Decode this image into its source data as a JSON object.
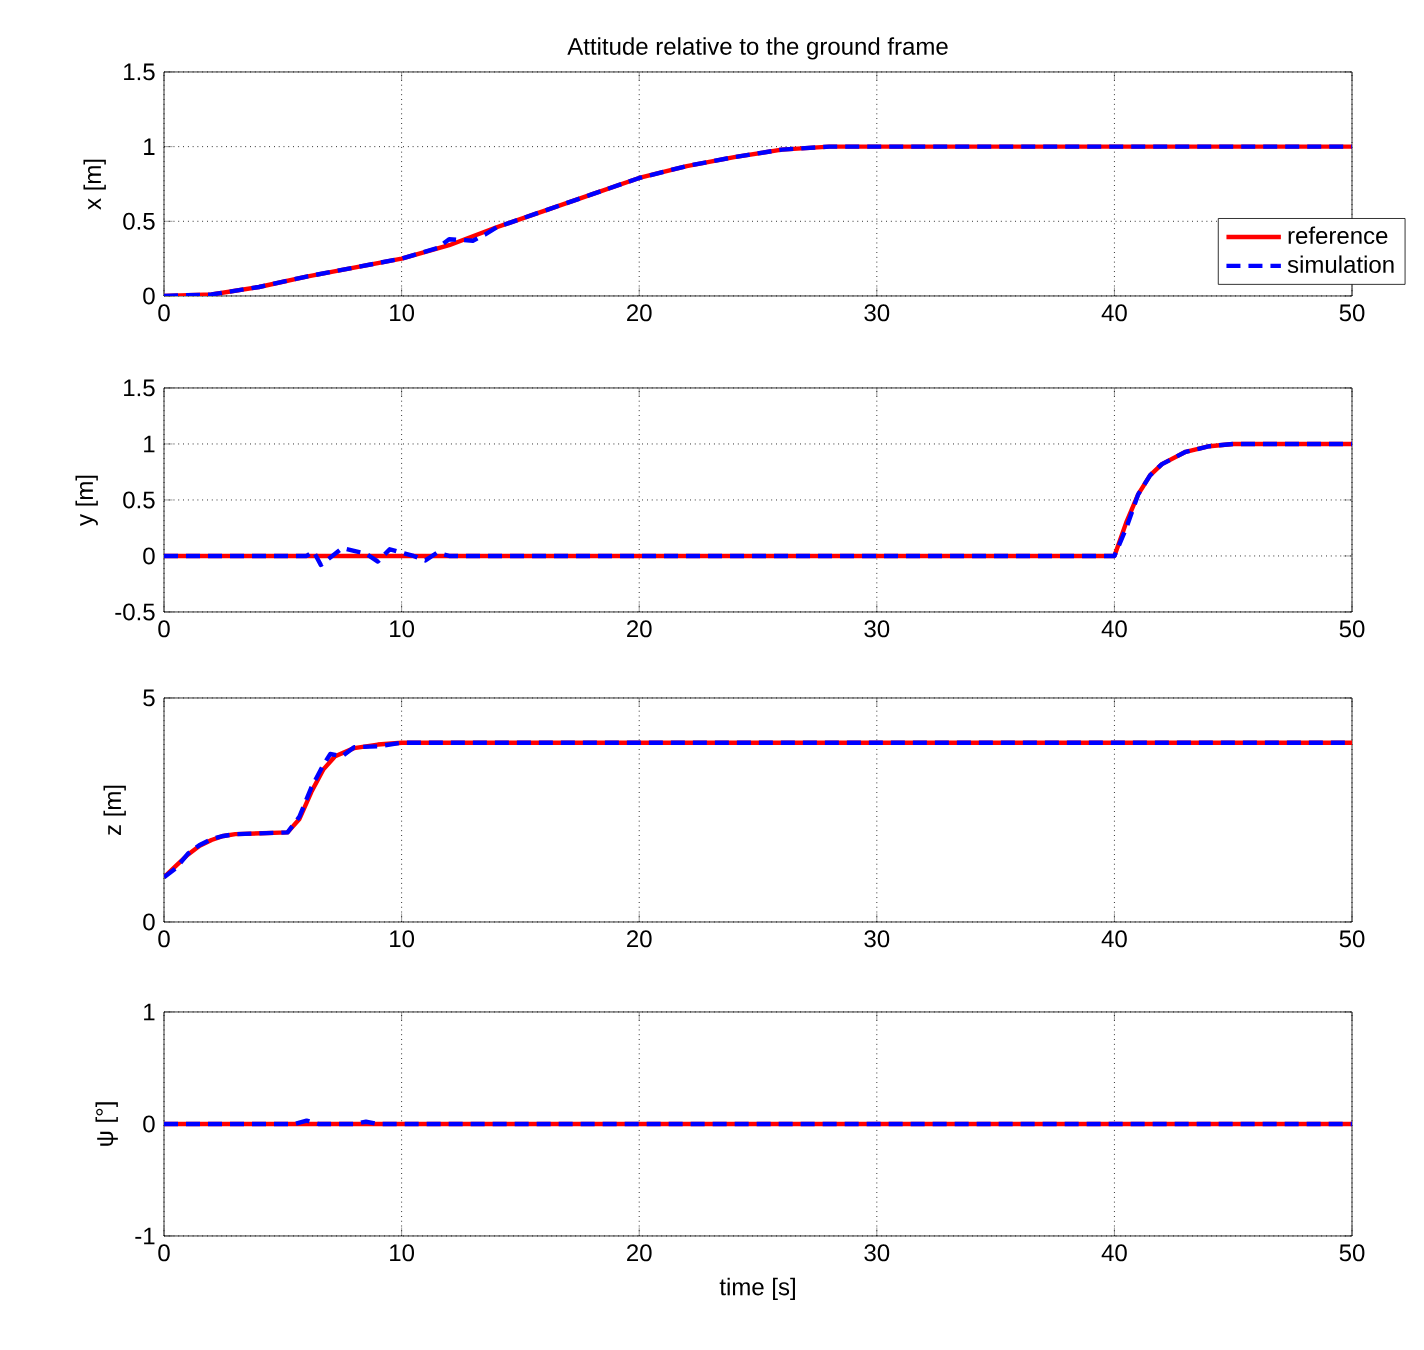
{
  "chart_data": [
    {
      "type": "line",
      "title": "Attitude relative to the ground frame",
      "ylabel": "x [m]",
      "xlim": [
        0,
        50
      ],
      "ylim": [
        0,
        1.5
      ],
      "xticks": [
        0,
        10,
        20,
        30,
        40,
        50
      ],
      "yticks": [
        0,
        0.5,
        1,
        1.5
      ],
      "grid": true,
      "legend": "bottom right",
      "series": [
        {
          "name": "reference",
          "color": "#ff0000",
          "line_style": "solid",
          "x": [
            0,
            2,
            4,
            6,
            8,
            10,
            12,
            14,
            16,
            18,
            20,
            22,
            24,
            26,
            28,
            50
          ],
          "values": [
            0,
            0.01,
            0.06,
            0.13,
            0.19,
            0.25,
            0.34,
            0.46,
            0.57,
            0.68,
            0.79,
            0.87,
            0.93,
            0.98,
            1,
            1
          ]
        },
        {
          "name": "simulation",
          "color": "#0000ff",
          "line_style": "dashed",
          "x": [
            0,
            2,
            4,
            6,
            8,
            10,
            11.5,
            12,
            13,
            13.5,
            14,
            16,
            18,
            20,
            22,
            24,
            26,
            28,
            50
          ],
          "values": [
            0,
            0.01,
            0.06,
            0.13,
            0.19,
            0.25,
            0.32,
            0.38,
            0.37,
            0.41,
            0.46,
            0.57,
            0.68,
            0.79,
            0.87,
            0.93,
            0.98,
            1,
            1
          ]
        }
      ]
    },
    {
      "type": "line",
      "ylabel": "y [m]",
      "xlim": [
        0,
        50
      ],
      "ylim": [
        -0.5,
        1.5
      ],
      "xticks": [
        0,
        10,
        20,
        30,
        40,
        50
      ],
      "yticks": [
        -0.5,
        0,
        0.5,
        1,
        1.5
      ],
      "grid": true,
      "series": [
        {
          "color": "#ff0000",
          "line_style": "solid",
          "x": [
            0,
            40,
            40.5,
            41,
            41.5,
            42,
            43,
            44,
            45,
            50
          ],
          "values": [
            0,
            0,
            0.3,
            0.55,
            0.72,
            0.82,
            0.93,
            0.98,
            1,
            1
          ]
        },
        {
          "color": "#0000ff",
          "line_style": "dashed",
          "x": [
            0,
            6,
            6.3,
            6.6,
            7.5,
            8.5,
            9,
            9.5,
            10.5,
            11,
            11.5,
            12,
            40,
            40.5,
            41,
            41.5,
            42,
            43,
            44,
            45,
            50
          ],
          "values": [
            0,
            0,
            0.04,
            -0.08,
            0.07,
            0.02,
            -0.05,
            0.06,
            0,
            -0.04,
            0.03,
            0,
            0,
            0.25,
            0.55,
            0.72,
            0.82,
            0.93,
            0.98,
            1,
            1
          ]
        }
      ]
    },
    {
      "type": "line",
      "ylabel": "z [m]",
      "xlim": [
        0,
        50
      ],
      "ylim": [
        0,
        5
      ],
      "xticks": [
        0,
        10,
        20,
        30,
        40,
        50
      ],
      "yticks": [
        0,
        5
      ],
      "grid": true,
      "series": [
        {
          "color": "#ff0000",
          "line_style": "solid",
          "x": [
            0,
            0.5,
            1,
            1.5,
            2,
            2.5,
            3,
            5.2,
            5.7,
            6.2,
            6.7,
            7.2,
            8,
            9,
            10,
            50
          ],
          "values": [
            1,
            1.25,
            1.5,
            1.7,
            1.83,
            1.92,
            1.96,
            2,
            2.3,
            2.9,
            3.4,
            3.7,
            3.88,
            3.96,
            4,
            4
          ]
        },
        {
          "color": "#0000ff",
          "line_style": "dashed",
          "x": [
            0,
            0.5,
            1,
            1.5,
            2,
            2.5,
            3,
            5.2,
            5.7,
            6.2,
            6.7,
            7,
            7.5,
            8,
            9,
            10,
            50
          ],
          "values": [
            1,
            1.2,
            1.52,
            1.72,
            1.85,
            1.92,
            1.96,
            2,
            2.35,
            3,
            3.5,
            3.75,
            3.7,
            3.9,
            3.92,
            4,
            4
          ]
        }
      ]
    },
    {
      "type": "line",
      "ylabel": "ψ [°]",
      "xlabel": "time [s]",
      "xlim": [
        0,
        50
      ],
      "ylim": [
        -1,
        1
      ],
      "xticks": [
        0,
        10,
        20,
        30,
        40,
        50
      ],
      "yticks": [
        -1,
        0,
        1
      ],
      "grid": true,
      "series": [
        {
          "color": "#ff0000",
          "line_style": "solid",
          "x": [
            0,
            50
          ],
          "values": [
            0,
            0
          ]
        },
        {
          "color": "#0000ff",
          "line_style": "dashed",
          "x": [
            0,
            5.5,
            6,
            6.5,
            8,
            8.5,
            9,
            50
          ],
          "values": [
            0,
            0,
            0.03,
            0,
            0,
            0.02,
            0,
            0
          ]
        }
      ]
    }
  ]
}
